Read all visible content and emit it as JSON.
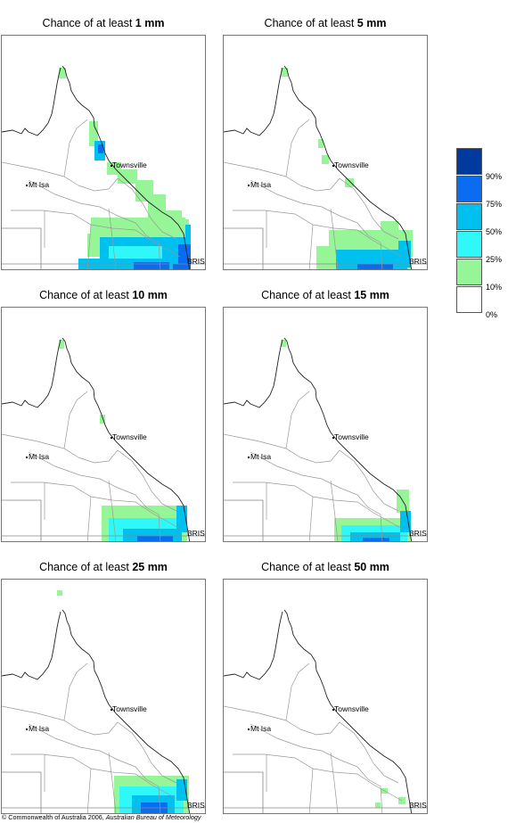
{
  "panels": [
    {
      "prefix": "Chance of at least",
      "amount": "1 mm"
    },
    {
      "prefix": "Chance of at least",
      "amount": "5 mm"
    },
    {
      "prefix": "Chance of at least",
      "amount": "10 mm"
    },
    {
      "prefix": "Chance of at least",
      "amount": "15 mm"
    },
    {
      "prefix": "Chance of at least",
      "amount": "25 mm"
    },
    {
      "prefix": "Chance of at least",
      "amount": "50 mm"
    }
  ],
  "map_labels": {
    "townsville": "Townsville",
    "mount_isa": "Mt Isa",
    "brisbane": "BRIS"
  },
  "legend": {
    "labels": [
      "90%",
      "75%",
      "50%",
      "25%",
      "10%",
      "0%"
    ],
    "colors": [
      "#003a9e",
      "#0a6cf0",
      "#00c0f0",
      "#30f8f8",
      "#96f596",
      "#ffffff"
    ]
  },
  "footer": {
    "copyright": "© Commonwealth of Australia 2006,",
    "agency": "Australian Bureau of Meteorology"
  }
}
